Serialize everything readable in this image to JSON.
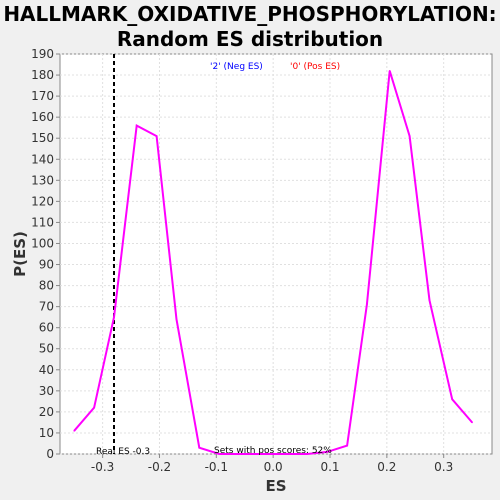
{
  "chart_data": {
    "type": "line",
    "title_lines": [
      "HALLMARK_OXIDATIVE_PHOSPHORYLATION:",
      "Random ES distribution"
    ],
    "xlabel": "ES",
    "ylabel": "P(ES)",
    "xlim": [
      -0.375,
      0.385
    ],
    "ylim": [
      0,
      190
    ],
    "x_ticks": [
      -0.3,
      -0.2,
      -0.1,
      0.0,
      0.1,
      0.2,
      0.3
    ],
    "x_tick_labels": [
      "-0.3",
      "-0.2",
      "-0.1",
      "0.0",
      "0.1",
      "0.2",
      "0.3"
    ],
    "y_ticks": [
      0,
      10,
      20,
      30,
      40,
      50,
      60,
      70,
      80,
      90,
      100,
      110,
      120,
      130,
      140,
      150,
      160,
      170,
      180,
      190
    ],
    "grid": true,
    "series": [
      {
        "color": "#ff00ff",
        "x": [
          -0.35,
          -0.315,
          -0.28,
          -0.24,
          -0.205,
          -0.17,
          -0.13,
          -0.095,
          -0.06,
          -0.02,
          0.02,
          0.06,
          0.095,
          0.13,
          0.165,
          0.205,
          0.24,
          0.275,
          0.315,
          0.35
        ],
        "y": [
          11,
          22,
          65,
          156,
          151,
          64,
          3,
          0,
          0,
          0,
          0,
          0,
          1,
          4,
          71,
          182,
          151,
          73,
          26,
          15
        ]
      }
    ],
    "legend": [
      {
        "label": "'2' (Neg ES)",
        "color": "#0000ff"
      },
      {
        "label": "'0' (Pos ES)",
        "color": "#ff0000"
      }
    ],
    "real_es": {
      "x": -0.28,
      "label": "Real ES -0.3"
    },
    "annotation": "Sets with pos scores: 52%"
  }
}
